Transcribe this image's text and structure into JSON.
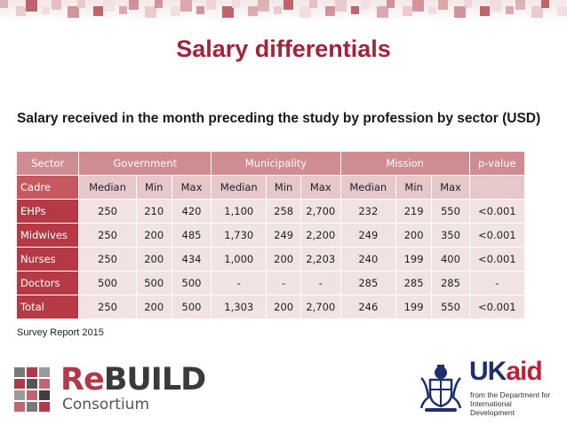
{
  "slide": {
    "title": "Salary differentials",
    "subtitle": "Salary received in the month preceding the study by profession by sector (USD)",
    "source": "Survey Report 2015"
  },
  "table": {
    "group_header": [
      "Sector",
      "Government",
      "Municipality",
      "Mission",
      "p-value"
    ],
    "sub_header": [
      "Cadre",
      "Median",
      "Min",
      "Max",
      "Median",
      "Min",
      "Max",
      "Median",
      "Min",
      "Max",
      ""
    ],
    "rows": [
      [
        "EHPs",
        "250",
        "210",
        "420",
        "1,100",
        "258",
        "2,700",
        "232",
        "219",
        "550",
        "<0.001"
      ],
      [
        "Midwives",
        "250",
        "200",
        "485",
        "1,730",
        "249",
        "2,200",
        "249",
        "200",
        "350",
        "<0.001"
      ],
      [
        " Nurses",
        "250",
        "200",
        "434",
        "1,000",
        "200",
        "2,203",
        "240",
        "199",
        "400",
        "<0.001"
      ],
      [
        "Doctors",
        "500",
        "500",
        "500",
        "-",
        "-",
        "-",
        "285",
        "285",
        "285",
        "-"
      ],
      [
        "Total",
        "250",
        "200",
        "500",
        "1,303",
        "200",
        "2,700",
        "246",
        "199",
        "550",
        "<0.001"
      ]
    ]
  },
  "logos": {
    "rebuild": {
      "re": "Re",
      "build": "BUILD",
      "consortium": "Consortium"
    },
    "ukaid": {
      "uk": "UK",
      "aid": "aid",
      "tagline": "from the Department for International Development"
    }
  },
  "colors": {
    "title": "#a3233a",
    "header_bg": "#cf8c91",
    "cadre_bg": "#b53a45",
    "cell_bg": "#f2e3e3"
  }
}
